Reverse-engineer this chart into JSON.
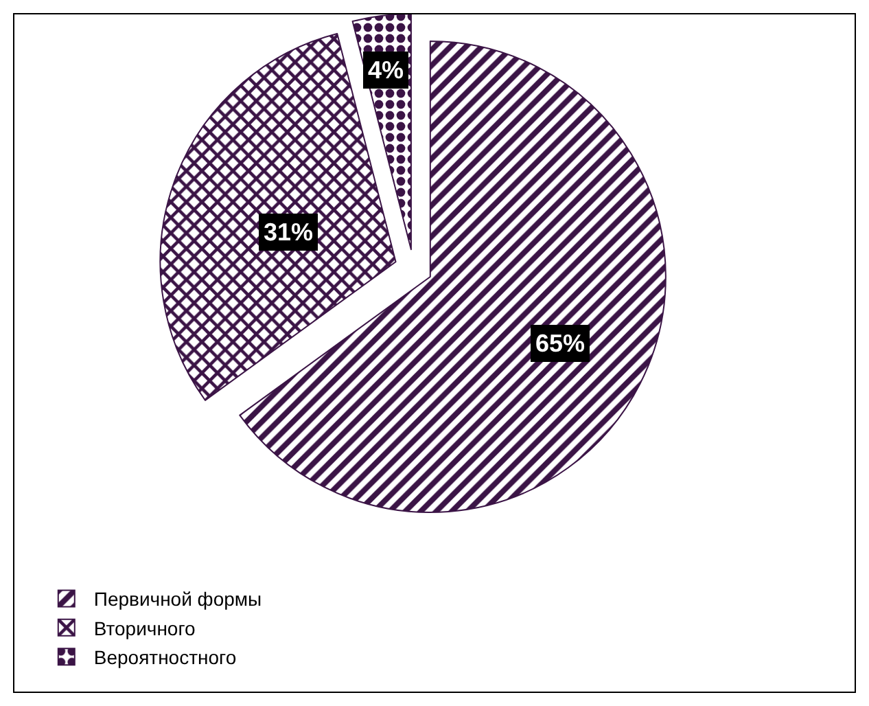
{
  "chart_data": {
    "type": "pie",
    "categories": [
      "Первичной формы",
      "Вторичного",
      "Вероятностного"
    ],
    "values": [
      65,
      31,
      4
    ],
    "colors": [
      "#3b1446",
      "#3b1446",
      "#3b1446"
    ],
    "value_labels": [
      "65%",
      "31%",
      "4%"
    ],
    "legend": "bottom left"
  }
}
